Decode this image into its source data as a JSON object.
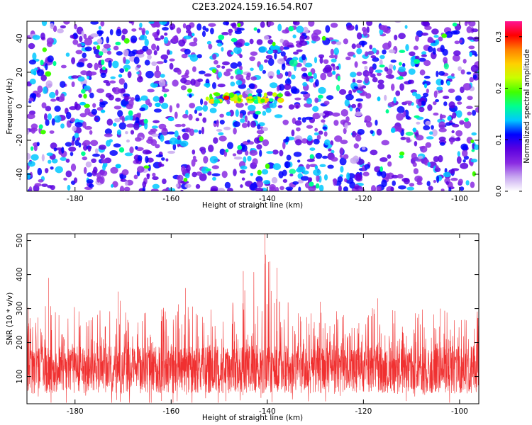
{
  "figure": {
    "title": "C2E3.2024.159.16.54.R07"
  },
  "chart_data": [
    {
      "type": "heatmap",
      "xlabel": "Height of straight line (km)",
      "ylabel": "Frequency (Hz)",
      "xlim": [
        -190,
        -96
      ],
      "ylim": [
        -50,
        50
      ],
      "xticks": [
        -180,
        -160,
        -140,
        -120,
        -100
      ],
      "yticks": [
        -40,
        -20,
        0,
        20,
        40
      ],
      "colorbar": {
        "label": "Normalized spectral amplitude",
        "range": [
          0,
          0.33
        ],
        "ticks": [
          0.0,
          0.1,
          0.2,
          0.3
        ],
        "colors": [
          "#ffffff",
          "#c8a8f0",
          "#8a2be2",
          "#5a00e0",
          "#0000ff",
          "#00c8ff",
          "#00ff90",
          "#40ff00",
          "#c8ff00",
          "#ffd000",
          "#ff8000",
          "#ff0000",
          "#ff1493"
        ]
      },
      "feature": {
        "description_label": "",
        "x_range": [
          -153,
          -137
        ],
        "frequency_hz": 5,
        "peak_amplitude": 0.3
      }
    },
    {
      "type": "line",
      "xlabel": "Height of straight line (km)",
      "ylabel": "SNR (10 * v/v)",
      "xlim": [
        -190,
        -96
      ],
      "ylim": [
        20,
        520
      ],
      "xticks": [
        -180,
        -160,
        -140,
        -120,
        -100
      ],
      "yticks": [
        100,
        200,
        300,
        400,
        500
      ],
      "line_color": "#f03030",
      "baseline": 120,
      "peak": {
        "x": -140.5,
        "y": 520
      },
      "envelope_peaks": [
        {
          "x": -185.5,
          "y": 390
        },
        {
          "x": -171,
          "y": 350
        },
        {
          "x": -157,
          "y": 360
        },
        {
          "x": -145,
          "y": 410
        },
        {
          "x": -140.5,
          "y": 520
        },
        {
          "x": -138,
          "y": 420
        },
        {
          "x": -129,
          "y": 320
        },
        {
          "x": -117,
          "y": 330
        },
        {
          "x": -104,
          "y": 300
        }
      ]
    }
  ]
}
